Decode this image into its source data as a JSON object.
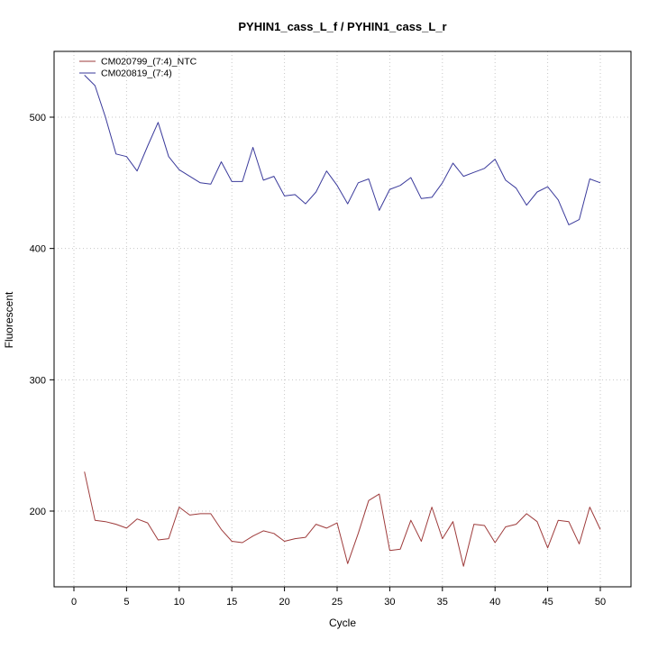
{
  "chart_data": {
    "type": "line",
    "title": "PYHIN1_cass_L_f / PYHIN1_cass_L_r",
    "xlabel": "Cycle",
    "ylabel": "Fluorescent",
    "xlim": [
      0,
      50
    ],
    "ylim": [
      200,
      500
    ],
    "xticks": [
      0,
      5,
      10,
      15,
      20,
      25,
      30,
      35,
      40,
      45,
      50
    ],
    "yticks": [
      200,
      300,
      400,
      500
    ],
    "grid": true,
    "grid_style": "dotted",
    "legend_position": "top-left",
    "axis_color": "#000000",
    "grid_color": "#c6c6c6",
    "x": [
      1,
      2,
      3,
      4,
      5,
      6,
      7,
      8,
      9,
      10,
      11,
      12,
      13,
      14,
      15,
      16,
      17,
      18,
      19,
      20,
      21,
      22,
      23,
      24,
      25,
      26,
      27,
      28,
      29,
      30,
      31,
      32,
      33,
      34,
      35,
      36,
      37,
      38,
      39,
      40,
      41,
      42,
      43,
      44,
      45,
      46,
      47,
      48,
      49,
      50
    ],
    "series": [
      {
        "name": "CM020799_(7:4)_NTC",
        "color": "#9e3b3b",
        "values": [
          230,
          193,
          192,
          190,
          187,
          194,
          191,
          178,
          179,
          203,
          197,
          198,
          198,
          186,
          177,
          176,
          181,
          185,
          183,
          177,
          179,
          180,
          190,
          187,
          191,
          160,
          183,
          208,
          213,
          170,
          171,
          193,
          177,
          203,
          179,
          192,
          158,
          190,
          189,
          176,
          188,
          190,
          198,
          192,
          172,
          193,
          192,
          175,
          203,
          186
        ]
      },
      {
        "name": "CM020819_(7:4)",
        "color": "#3a3a9b",
        "values": [
          532,
          524,
          500,
          472,
          470,
          459,
          478,
          496,
          470,
          460,
          455,
          450,
          449,
          466,
          451,
          451,
          477,
          452,
          455,
          440,
          441,
          434,
          443,
          459,
          448,
          434,
          450,
          453,
          429,
          445,
          448,
          454,
          438,
          439,
          450,
          465,
          455,
          458,
          461,
          468,
          452,
          446,
          433,
          443,
          447,
          437,
          418,
          422,
          453,
          450
        ]
      }
    ]
  }
}
